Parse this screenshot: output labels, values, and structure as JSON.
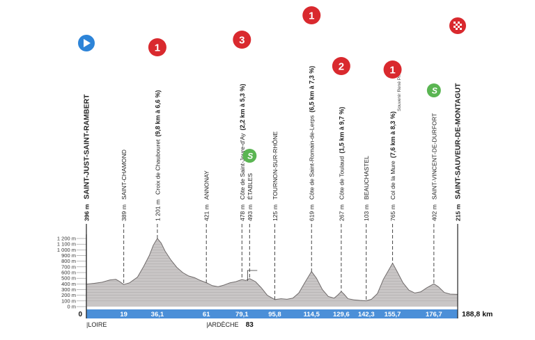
{
  "profile": {
    "start_town": "SAINT-JUST-SAINT-RAMBERT",
    "finish_town": "SAINT-SAUVEUR-DE-MONTAGUT",
    "total_distance": "188,8 km",
    "start_km": "0",
    "y_axis_labels": [
      "1 200 m",
      "1 100 m",
      "1 000 m",
      "900 m",
      "800 m",
      "700 m",
      "600 m",
      "500 m",
      "400 m",
      "300 m",
      "200 m",
      "100 m",
      "0 m"
    ],
    "departments": [
      {
        "name": "LOIRE",
        "km": 0
      },
      {
        "name": "ARDÈCHE",
        "km": 61
      }
    ],
    "extra_km_marker": {
      "label": "83",
      "km": 83
    }
  },
  "waypoints": [
    {
      "km": 0,
      "km_label": "",
      "alt_label": "396 m",
      "name": "SAINT-JUST-SAINT-RAMBERT",
      "type": "start",
      "bold": true,
      "icon": "start-flag-icon",
      "badge": ""
    },
    {
      "km": 19,
      "km_label": "19",
      "alt_label": "389 m",
      "name": "SAINT-CHAMOND",
      "type": "town",
      "bold": false,
      "icon": "",
      "badge": ""
    },
    {
      "km": 36.1,
      "km_label": "36,1",
      "alt_label": "1 201 m",
      "name": "Croix de Chaubouret",
      "suffix": "(9,8 km à 6,6 %)",
      "type": "climb",
      "bold": false,
      "icon": "climb-cat1-icon",
      "badge": "1"
    },
    {
      "km": 61,
      "km_label": "61",
      "alt_label": "421 m",
      "name": "ANNONAY",
      "type": "town",
      "bold": false,
      "icon": "",
      "badge": ""
    },
    {
      "km": 79.1,
      "km_label": "79,1",
      "alt_label": "478 m",
      "name": "Côte de Saint-Jeure-d'Ay",
      "suffix": "(2,2 km à 5,3 %)",
      "type": "climb",
      "bold": false,
      "icon": "climb-cat3-icon",
      "badge": "3"
    },
    {
      "km": 83,
      "km_label": "",
      "alt_label": "493 m",
      "name": "ÉTABLES",
      "type": "sprint",
      "bold": false,
      "icon": "sprint-icon",
      "badge": "S"
    },
    {
      "km": 95.8,
      "km_label": "95,8",
      "alt_label": "125 m",
      "name": "TOURNON-SUR-RHÔNE",
      "type": "town",
      "bold": false,
      "icon": "",
      "badge": ""
    },
    {
      "km": 114.5,
      "km_label": "114,5",
      "alt_label": "619 m",
      "name": "Côte de Saint-Romain-de-Lerps",
      "suffix": "(6,5 km à 7,3 %)",
      "type": "climb",
      "bold": false,
      "icon": "climb-cat1-icon",
      "badge": "1"
    },
    {
      "km": 129.6,
      "km_label": "129,6",
      "alt_label": "267 m",
      "name": "Côte de Toulaud",
      "suffix": "(1,5 km à 9,7 %)",
      "type": "climb",
      "bold": false,
      "icon": "climb-cat2-icon",
      "badge": "2"
    },
    {
      "km": 142.3,
      "km_label": "142,3",
      "alt_label": "103 m",
      "name": "BEAUCHASTEL",
      "type": "town",
      "bold": false,
      "icon": "",
      "badge": ""
    },
    {
      "km": 155.7,
      "km_label": "155,7",
      "alt_label": "765 m",
      "name": "Col de la Mure",
      "suffix": "(7,6 km à 8,3 %)",
      "sub": "Souvenir René Privat",
      "type": "climb",
      "bold": false,
      "icon": "climb-cat1-icon",
      "badge": "1"
    },
    {
      "km": 176.7,
      "km_label": "176,7",
      "alt_label": "402 m",
      "name": "SAINT-VINCENT-DE-DURFORT",
      "type": "sprint",
      "bold": false,
      "icon": "sprint-icon",
      "badge": "S"
    },
    {
      "km": 188.8,
      "km_label": "",
      "alt_label": "215 m",
      "name": "SAINT-SAUVEUR-DE-MONTAGUT",
      "type": "finish",
      "bold": true,
      "icon": "finish-flag-icon",
      "badge": ""
    }
  ],
  "elevation_profile": {
    "unit_x": "km",
    "unit_y": "m",
    "points": [
      [
        0,
        396
      ],
      [
        4,
        410
      ],
      [
        8,
        430
      ],
      [
        12,
        470
      ],
      [
        15,
        480
      ],
      [
        17,
        440
      ],
      [
        19,
        389
      ],
      [
        22,
        420
      ],
      [
        26,
        520
      ],
      [
        29,
        700
      ],
      [
        32,
        900
      ],
      [
        34,
        1080
      ],
      [
        36.1,
        1201
      ],
      [
        38,
        1120
      ],
      [
        40,
        980
      ],
      [
        43,
        820
      ],
      [
        46,
        690
      ],
      [
        49,
        600
      ],
      [
        52,
        540
      ],
      [
        55,
        510
      ],
      [
        58,
        460
      ],
      [
        61,
        421
      ],
      [
        64,
        370
      ],
      [
        67,
        350
      ],
      [
        70,
        380
      ],
      [
        73,
        420
      ],
      [
        76,
        440
      ],
      [
        79.1,
        478
      ],
      [
        81,
        460
      ],
      [
        83,
        493
      ],
      [
        86,
        440
      ],
      [
        89,
        330
      ],
      [
        92,
        200
      ],
      [
        95.8,
        125
      ],
      [
        99,
        140
      ],
      [
        102,
        130
      ],
      [
        105,
        150
      ],
      [
        108,
        240
      ],
      [
        111,
        420
      ],
      [
        114.5,
        619
      ],
      [
        117,
        500
      ],
      [
        120,
        300
      ],
      [
        123,
        180
      ],
      [
        126,
        150
      ],
      [
        128,
        210
      ],
      [
        129.6,
        267
      ],
      [
        131,
        220
      ],
      [
        133,
        140
      ],
      [
        136,
        120
      ],
      [
        139,
        110
      ],
      [
        142.3,
        103
      ],
      [
        145,
        130
      ],
      [
        148,
        230
      ],
      [
        151,
        480
      ],
      [
        155.7,
        765
      ],
      [
        158,
        620
      ],
      [
        161,
        420
      ],
      [
        164,
        290
      ],
      [
        167,
        240
      ],
      [
        170,
        260
      ],
      [
        173,
        330
      ],
      [
        176.7,
        402
      ],
      [
        179,
        350
      ],
      [
        182,
        250
      ],
      [
        185,
        220
      ],
      [
        188.8,
        215
      ]
    ],
    "y_max": 1200,
    "x_max": 188.8
  },
  "colors": {
    "profile_fill": "#c9c6c6",
    "profile_line": "#6f6a6a",
    "band": "#4b8fd8",
    "climb_badge": "#d9292e",
    "sprint_badge": "#5ab552",
    "start_badge": "#2d84d8"
  }
}
